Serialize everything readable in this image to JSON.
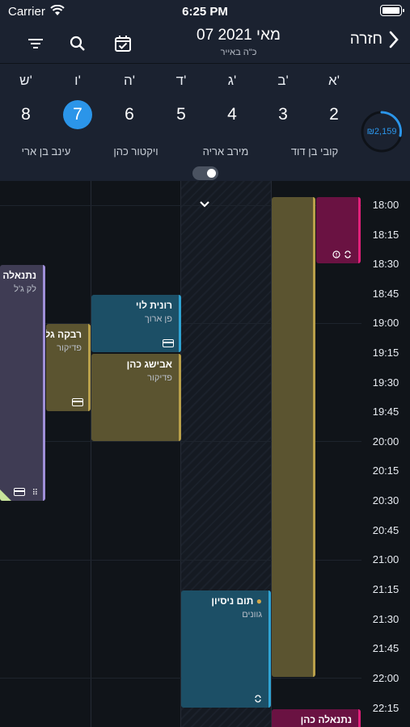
{
  "status_bar": {
    "carrier": "Carrier",
    "time": "6:25 PM"
  },
  "header": {
    "title": "07 מאי 2021",
    "subtitle": "כ\"ה באייר",
    "back_label": "חזרה",
    "gauge_value": "2,159",
    "gauge_currency": "₪"
  },
  "days": [
    {
      "name": "א'",
      "num": "2"
    },
    {
      "name": "ב'",
      "num": "3"
    },
    {
      "name": "ג'",
      "num": "4"
    },
    {
      "name": "ד'",
      "num": "5"
    },
    {
      "name": "ה'",
      "num": "6"
    },
    {
      "name": "ו'",
      "num": "7"
    },
    {
      "name": "ש'",
      "num": "8"
    }
  ],
  "selected_day": "7",
  "staff": [
    "קובי בן דוד",
    "מירב אריה",
    "ויקטור כהן",
    "עינב בן ארי"
  ],
  "times": [
    "18:00",
    "18:15",
    "18:30",
    "18:45",
    "19:00",
    "19:15",
    "19:30",
    "19:45",
    "20:00",
    "20:15",
    "20:30",
    "20:45",
    "21:00",
    "21:15",
    "21:30",
    "21:45",
    "22:00",
    "22:15"
  ],
  "events": {
    "rachel": {
      "name": "נתנאלה כהן",
      "service": "לק ג'ל"
    },
    "rivka": {
      "name": "רבקה גל",
      "service": "פדיקור"
    },
    "ronit": {
      "name": "רונית לוי",
      "service": "פן ארוך"
    },
    "avishag": {
      "name": "אבישג כהן",
      "service": "פדיקור"
    },
    "tom": {
      "name": "תום ניסיון",
      "service": "גוונים"
    },
    "netanela": {
      "name": "נתנאלה כהן"
    }
  },
  "colors": {
    "accent": "#2b95e9",
    "olive": "#5b5430",
    "teal": "#1c4f66",
    "magenta": "#6a1242",
    "lavender": "#3f3c54"
  }
}
